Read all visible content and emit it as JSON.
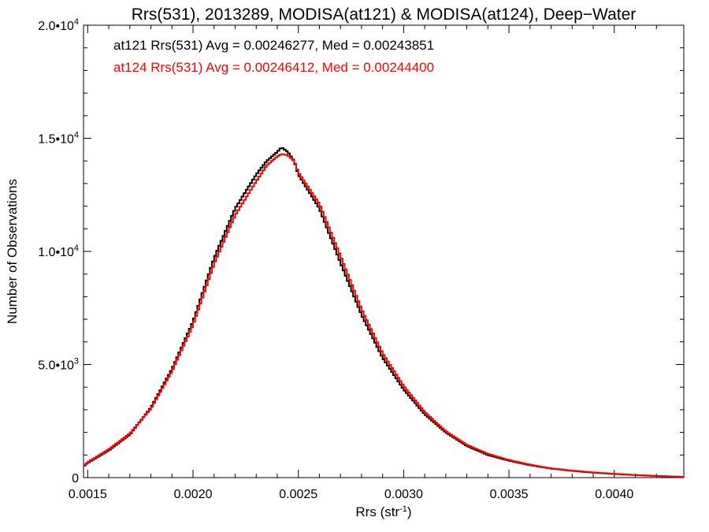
{
  "chart_data": {
    "type": "line",
    "title": "Rrs(531), 2013289, MODISA(at121) & MODISA(at124), Deep−Water",
    "xlabel": "Rrs (str",
    "xlabel_sup": "-1",
    "xlabel_close": ")",
    "ylabel": "Number of Observations",
    "xlim": [
      0.00148,
      0.00433
    ],
    "ylim": [
      0,
      20000
    ],
    "x_ticks": [
      {
        "value": 0.0015,
        "label": "0.0015"
      },
      {
        "value": 0.002,
        "label": "0.0020"
      },
      {
        "value": 0.0025,
        "label": "0.0025"
      },
      {
        "value": 0.003,
        "label": "0.0030"
      },
      {
        "value": 0.0035,
        "label": "0.0035"
      },
      {
        "value": 0.004,
        "label": "0.0040"
      }
    ],
    "y_ticks": [
      {
        "value": 0,
        "mant": "0",
        "exp": ""
      },
      {
        "value": 5000,
        "mant": "5.0•10",
        "exp": "3"
      },
      {
        "value": 10000,
        "mant": "1.0•10",
        "exp": "4"
      },
      {
        "value": 15000,
        "mant": "1.5•10",
        "exp": "4"
      },
      {
        "value": 20000,
        "mant": "2.0•10",
        "exp": "4"
      }
    ],
    "annotations": [
      {
        "text": "at121 Rrs(531) Avg = 0.00246277, Med = 0.00243851",
        "color": "#000000"
      },
      {
        "text": "at124 Rrs(531) Avg = 0.00246412, Med = 0.00244400",
        "color": "#ff0000"
      }
    ],
    "series": [
      {
        "color": "#000000",
        "x": [
          0.00148,
          0.0015,
          0.0016,
          0.0017,
          0.0018,
          0.0019,
          0.002,
          0.0021,
          0.0022,
          0.0023,
          0.00235,
          0.0024,
          0.00242,
          0.00245,
          0.00248,
          0.0025,
          0.0026,
          0.0027,
          0.0028,
          0.0029,
          0.003,
          0.0031,
          0.0032,
          0.0033,
          0.0034,
          0.0035,
          0.0036,
          0.0037,
          0.0038,
          0.0039,
          0.004,
          0.0041,
          0.0042,
          0.00433
        ],
        "y": [
          500,
          650,
          1200,
          1900,
          3100,
          4800,
          6900,
          9700,
          11900,
          13400,
          14000,
          14400,
          14600,
          14400,
          14000,
          13400,
          11900,
          9500,
          7200,
          5300,
          3900,
          2800,
          2000,
          1400,
          1000,
          750,
          550,
          400,
          300,
          220,
          160,
          110,
          70,
          30
        ]
      },
      {
        "color": "#ff0000",
        "x": [
          0.00148,
          0.0015,
          0.0016,
          0.0017,
          0.0018,
          0.0019,
          0.002,
          0.0021,
          0.0022,
          0.0023,
          0.00235,
          0.0024,
          0.00242,
          0.00245,
          0.00248,
          0.0025,
          0.0026,
          0.0027,
          0.0028,
          0.0029,
          0.003,
          0.0031,
          0.0032,
          0.0033,
          0.0034,
          0.0035,
          0.0036,
          0.0037,
          0.0038,
          0.0039,
          0.004,
          0.0041,
          0.0042,
          0.00433
        ],
        "y": [
          520,
          680,
          1250,
          1950,
          3050,
          4700,
          6750,
          9450,
          11600,
          13100,
          13800,
          14200,
          14300,
          14250,
          14000,
          13500,
          12100,
          9800,
          7450,
          5500,
          4050,
          2900,
          2050,
          1450,
          1050,
          780,
          570,
          410,
          310,
          230,
          170,
          115,
          75,
          35
        ]
      }
    ]
  }
}
